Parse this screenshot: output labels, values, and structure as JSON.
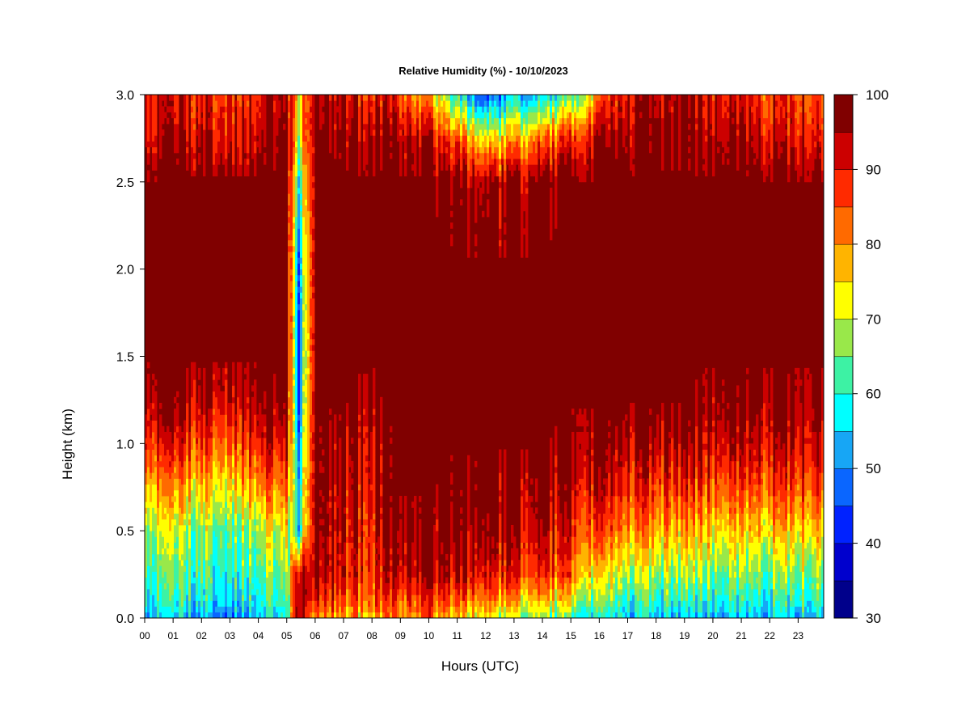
{
  "chart_data": {
    "type": "heatmap",
    "title": "Relative Humidity (%) - 10/10/2023",
    "xlabel": "Hours (UTC)",
    "ylabel": "Height (km)",
    "xlim": [
      0,
      23.9
    ],
    "ylim": [
      0,
      3.0
    ],
    "x_ticks": [
      "00",
      "01",
      "02",
      "03",
      "04",
      "05",
      "06",
      "07",
      "08",
      "09",
      "10",
      "11",
      "12",
      "13",
      "14",
      "15",
      "16",
      "17",
      "18",
      "19",
      "20",
      "21",
      "22",
      "23"
    ],
    "y_ticks": [
      "0.0",
      "0.5",
      "1.0",
      "1.5",
      "2.0",
      "2.5",
      "3.0"
    ],
    "colorbar": {
      "min": 30,
      "max": 100,
      "step": 5,
      "tick_labels": [
        "30",
        "40",
        "50",
        "60",
        "70",
        "80",
        "90",
        "100"
      ],
      "colors": [
        "#00008b",
        "#0000cd",
        "#0022ff",
        "#0a66ff",
        "#17a6f5",
        "#00ffff",
        "#3df2a4",
        "#99e84a",
        "#ffff00",
        "#ffb400",
        "#ff6a00",
        "#ff2a00",
        "#cc0000",
        "#800000"
      ]
    },
    "grid": false,
    "profiles": {
      "description_heights_km": [
        0.0,
        0.1,
        0.25,
        0.5,
        0.75,
        1.0,
        1.25,
        1.5,
        2.0,
        2.5,
        2.75,
        3.0
      ],
      "hours": [
        0,
        1,
        2,
        3,
        4,
        5,
        5.4,
        6,
        7,
        8,
        9,
        10,
        11,
        12,
        13,
        14,
        15,
        16,
        17,
        18,
        19,
        20,
        21,
        22,
        23.9
      ],
      "rh": [
        [
          52,
          58,
          62,
          68,
          78,
          88,
          96,
          100,
          100,
          100,
          92,
          90
        ],
        [
          52,
          58,
          62,
          68,
          78,
          88,
          96,
          100,
          100,
          100,
          92,
          90
        ],
        [
          52,
          58,
          62,
          66,
          76,
          86,
          95,
          100,
          100,
          100,
          94,
          90
        ],
        [
          52,
          58,
          62,
          66,
          76,
          86,
          95,
          100,
          100,
          100,
          94,
          90
        ],
        [
          54,
          58,
          62,
          68,
          80,
          90,
          97,
          100,
          100,
          100,
          94,
          90
        ],
        [
          58,
          62,
          66,
          72,
          82,
          92,
          98,
          100,
          100,
          100,
          98,
          96
        ],
        [
          98,
          96,
          94,
          55,
          55,
          50,
          45,
          45,
          48,
          58,
          70,
          72
        ],
        [
          80,
          90,
          96,
          100,
          100,
          100,
          100,
          100,
          100,
          100,
          100,
          98
        ],
        [
          78,
          86,
          90,
          92,
          94,
          96,
          100,
          100,
          100,
          100,
          98,
          92
        ],
        [
          76,
          84,
          88,
          90,
          92,
          94,
          98,
          100,
          100,
          100,
          97,
          90
        ],
        [
          80,
          86,
          94,
          98,
          100,
          100,
          100,
          100,
          100,
          100,
          96,
          86
        ],
        [
          82,
          88,
          96,
          98,
          100,
          100,
          100,
          100,
          100,
          100,
          94,
          78
        ],
        [
          74,
          82,
          92,
          96,
          98,
          100,
          100,
          100,
          100,
          97,
          82,
          58
        ],
        [
          70,
          80,
          90,
          96,
          98,
          100,
          100,
          100,
          100,
          94,
          72,
          42
        ],
        [
          68,
          78,
          88,
          94,
          96,
          100,
          100,
          100,
          100,
          96,
          78,
          55
        ],
        [
          64,
          74,
          86,
          92,
          96,
          100,
          100,
          100,
          100,
          98,
          80,
          52
        ],
        [
          62,
          72,
          84,
          90,
          94,
          98,
          100,
          100,
          100,
          100,
          88,
          62
        ],
        [
          56,
          64,
          72,
          84,
          92,
          96,
          100,
          100,
          100,
          100,
          94,
          80
        ],
        [
          54,
          60,
          68,
          80,
          88,
          94,
          100,
          100,
          100,
          100,
          96,
          92
        ],
        [
          54,
          60,
          66,
          78,
          86,
          94,
          100,
          100,
          100,
          100,
          98,
          94
        ],
        [
          54,
          60,
          68,
          78,
          88,
          96,
          100,
          100,
          100,
          100,
          98,
          96
        ],
        [
          54,
          60,
          66,
          76,
          86,
          94,
          98,
          100,
          100,
          100,
          96,
          92
        ],
        [
          50,
          58,
          64,
          74,
          84,
          92,
          98,
          100,
          100,
          100,
          94,
          88
        ],
        [
          54,
          60,
          66,
          76,
          86,
          94,
          98,
          100,
          100,
          100,
          92,
          88
        ],
        [
          56,
          62,
          68,
          78,
          88,
          95,
          98,
          100,
          100,
          100,
          92,
          88
        ]
      ]
    }
  }
}
